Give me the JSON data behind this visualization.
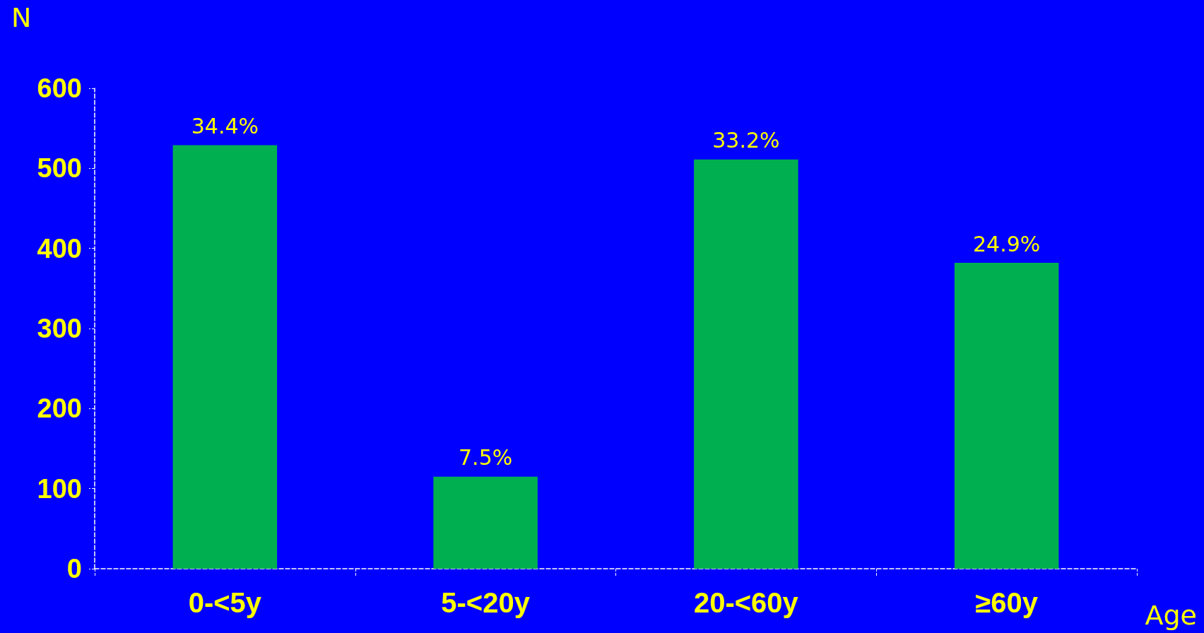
{
  "chart_data": {
    "type": "bar",
    "xlabel": "Age",
    "ylabel": "N",
    "categories": [
      "0-<5y",
      "5-<20y",
      "20-<60y",
      "≥60y"
    ],
    "values": [
      529,
      115,
      511,
      382
    ],
    "annotations": [
      {
        "text": "34.4%",
        "x": "0-<5y",
        "y": 529
      },
      {
        "text": "7.5%",
        "x": "5-<20y",
        "y": 115
      },
      {
        "text": "33.2%",
        "x": "20-<60y",
        "y": 511
      },
      {
        "text": "24.9%",
        "x": "≥60y",
        "y": 382
      }
    ],
    "color": "#00b050",
    "ylim": [
      0,
      600
    ],
    "yticks": [
      0,
      100,
      200,
      300,
      400,
      500,
      600
    ],
    "grid": false
  }
}
